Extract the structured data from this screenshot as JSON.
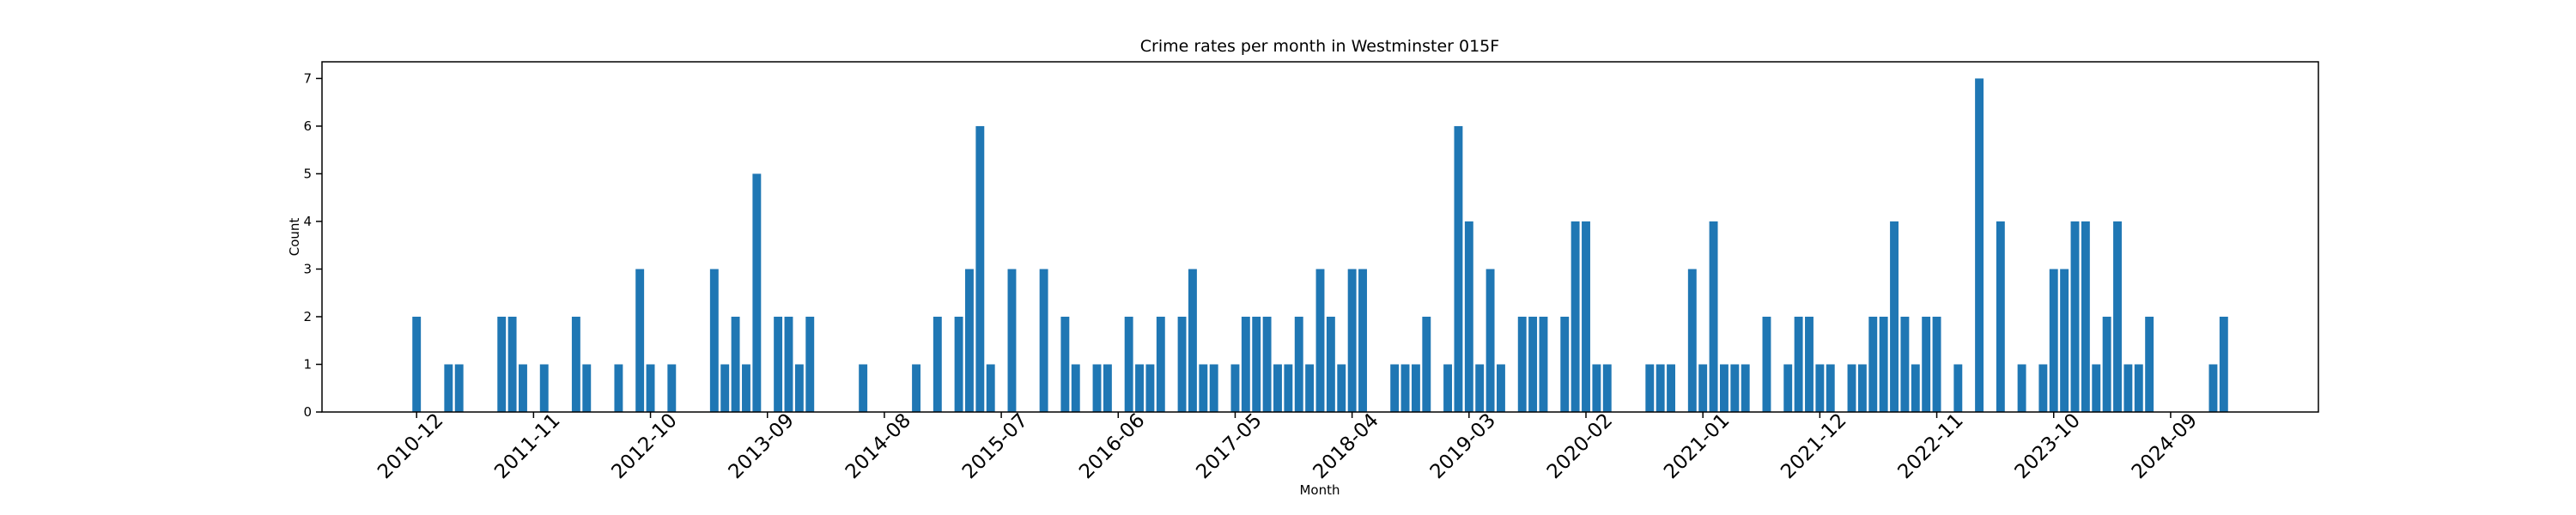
{
  "chart_data": {
    "type": "bar",
    "title": "Crime rates per month in Westminster 015F",
    "xlabel": "Month",
    "ylabel": "Count",
    "color": "#1f77b4",
    "x": [
      "2010-12",
      "2011-01",
      "2011-02",
      "2011-03",
      "2011-04",
      "2011-05",
      "2011-06",
      "2011-07",
      "2011-08",
      "2011-09",
      "2011-10",
      "2011-11",
      "2011-12",
      "2012-01",
      "2012-02",
      "2012-03",
      "2012-04",
      "2012-05",
      "2012-06",
      "2012-07",
      "2012-08",
      "2012-09",
      "2012-10",
      "2012-11",
      "2012-12",
      "2013-01",
      "2013-02",
      "2013-03",
      "2013-04",
      "2013-05",
      "2013-06",
      "2013-07",
      "2013-08",
      "2013-09",
      "2013-10",
      "2013-11",
      "2013-12",
      "2014-01",
      "2014-02",
      "2014-03",
      "2014-04",
      "2014-05",
      "2014-06",
      "2014-07",
      "2014-08",
      "2014-09",
      "2014-10",
      "2014-11",
      "2014-12",
      "2015-01",
      "2015-02",
      "2015-03",
      "2015-04",
      "2015-05",
      "2015-06",
      "2015-07",
      "2015-08",
      "2015-09",
      "2015-10",
      "2015-11",
      "2015-12",
      "2016-01",
      "2016-02",
      "2016-03",
      "2016-04",
      "2016-05",
      "2016-06",
      "2016-07",
      "2016-08",
      "2016-09",
      "2016-10",
      "2016-11",
      "2016-12",
      "2017-01",
      "2017-02",
      "2017-03",
      "2017-04",
      "2017-05",
      "2017-06",
      "2017-07",
      "2017-08",
      "2017-09",
      "2017-10",
      "2017-11",
      "2017-12",
      "2018-01",
      "2018-02",
      "2018-03",
      "2018-04",
      "2018-05",
      "2018-06",
      "2018-07",
      "2018-08",
      "2018-09",
      "2018-10",
      "2018-11",
      "2018-12",
      "2019-01",
      "2019-02",
      "2019-03",
      "2019-04",
      "2019-05",
      "2019-06",
      "2019-07",
      "2019-08",
      "2019-09",
      "2019-10",
      "2019-11",
      "2019-12",
      "2020-01",
      "2020-02",
      "2020-03",
      "2020-04",
      "2020-05",
      "2020-06",
      "2020-07",
      "2020-08",
      "2020-09",
      "2020-10",
      "2020-11",
      "2020-12",
      "2021-01",
      "2021-02",
      "2021-03",
      "2021-04",
      "2021-05",
      "2021-06",
      "2021-07",
      "2021-08",
      "2021-09",
      "2021-10",
      "2021-11",
      "2021-12",
      "2022-01",
      "2022-02",
      "2022-03",
      "2022-04",
      "2022-05",
      "2022-06",
      "2022-07",
      "2022-08",
      "2022-09",
      "2022-10",
      "2022-11",
      "2022-12",
      "2023-01",
      "2023-02",
      "2023-03",
      "2023-04",
      "2023-05",
      "2023-06",
      "2023-07",
      "2023-08",
      "2023-09",
      "2023-10",
      "2023-11",
      "2023-12",
      "2024-01",
      "2024-02",
      "2024-03",
      "2024-04",
      "2024-05",
      "2024-06",
      "2024-07",
      "2024-08",
      "2024-09",
      "2024-10",
      "2024-11",
      "2024-12",
      "2025-01",
      "2025-02"
    ],
    "values": [
      2,
      0,
      0,
      1,
      1,
      0,
      0,
      0,
      2,
      2,
      1,
      0,
      1,
      0,
      0,
      2,
      1,
      0,
      0,
      1,
      0,
      3,
      1,
      0,
      1,
      0,
      0,
      0,
      3,
      1,
      2,
      1,
      5,
      0,
      2,
      2,
      1,
      2,
      0,
      0,
      0,
      0,
      1,
      0,
      0,
      0,
      0,
      1,
      0,
      2,
      0,
      2,
      3,
      6,
      1,
      0,
      3,
      0,
      0,
      3,
      0,
      2,
      1,
      0,
      1,
      1,
      0,
      2,
      1,
      1,
      2,
      0,
      2,
      3,
      1,
      1,
      0,
      1,
      2,
      2,
      2,
      1,
      1,
      2,
      1,
      3,
      2,
      1,
      3,
      3,
      0,
      0,
      1,
      1,
      1,
      2,
      0,
      1,
      6,
      4,
      1,
      3,
      1,
      0,
      2,
      2,
      2,
      0,
      2,
      4,
      4,
      1,
      1,
      0,
      0,
      0,
      1,
      1,
      1,
      0,
      3,
      1,
      4,
      1,
      1,
      1,
      0,
      2,
      0,
      1,
      2,
      2,
      1,
      1,
      0,
      1,
      1,
      2,
      2,
      4,
      2,
      1,
      2,
      2,
      0,
      1,
      0,
      7,
      0,
      4,
      0,
      1,
      0,
      1,
      3,
      3,
      4,
      4,
      1,
      2,
      4,
      1,
      1,
      2,
      0,
      0,
      0,
      0,
      0,
      1,
      2
    ],
    "xticks": [
      "2010-12",
      "2011-11",
      "2012-10",
      "2013-09",
      "2014-08",
      "2015-07",
      "2016-06",
      "2017-05",
      "2018-04",
      "2019-03",
      "2020-02",
      "2021-01",
      "2021-12",
      "2022-11",
      "2023-10",
      "2024-09"
    ],
    "ylim": [
      0,
      7.35
    ],
    "yticks": [
      0,
      1,
      2,
      3,
      4,
      5,
      6,
      7
    ]
  }
}
